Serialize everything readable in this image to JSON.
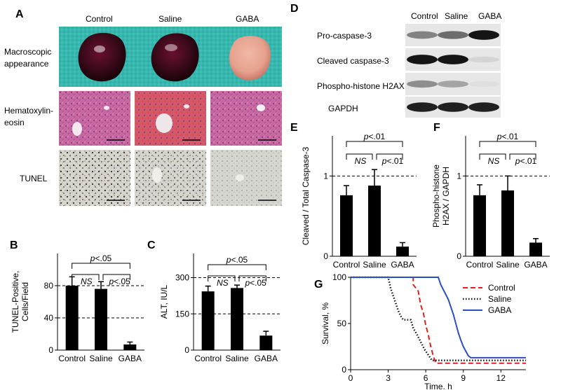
{
  "panel_letters": {
    "a": "A",
    "b": "B",
    "c": "C",
    "d": "D",
    "e": "E",
    "f": "F",
    "g": "G"
  },
  "panel_a": {
    "columns": [
      "Control",
      "Saline",
      "GABA"
    ],
    "rows": [
      "Macroscopic appearance",
      "Hematoxylin-eosin",
      "TUNEL"
    ],
    "row_lines": [
      [
        "Macroscopic",
        "appearance"
      ],
      [
        "Hematoxylin-",
        "eosin"
      ],
      [
        "TUNEL"
      ]
    ],
    "colors": {
      "teal": "#37b7ae",
      "dark_liver": "#3a0a1a",
      "pale_liver": "#e6a08e",
      "he_bg": "#c7679f",
      "tunel_bg": "#d6d6d0"
    }
  },
  "panel_d": {
    "columns": [
      "Control",
      "Saline",
      "GABA"
    ],
    "bands": [
      "Pro-caspase-3",
      "Cleaved caspase-3",
      "Phospho-histone H2AX",
      "GAPDH"
    ],
    "intensity": [
      [
        0.45,
        0.55,
        0.95
      ],
      [
        0.95,
        0.95,
        0.08
      ],
      [
        0.4,
        0.3,
        0.03
      ],
      [
        0.9,
        0.9,
        0.9
      ]
    ]
  },
  "chart_data": [
    {
      "id": "B",
      "type": "bar",
      "categories": [
        "Control",
        "Saline",
        "GABA"
      ],
      "values": [
        80,
        76,
        7
      ],
      "errors": [
        11,
        9,
        3
      ],
      "ylabel_lines": [
        "TUNEL-Positive,",
        "Cells/Field"
      ],
      "ylim": [
        0,
        120
      ],
      "yticks": [
        0,
        40,
        80
      ],
      "dashed_lines": [
        40,
        80
      ],
      "annotations": [
        {
          "p_prefix": "p",
          "text": "<.05"
        },
        {
          "text": "NS"
        },
        {
          "p_prefix": "p",
          "text": "<.05"
        }
      ]
    },
    {
      "id": "C",
      "type": "bar",
      "categories": [
        "Control",
        "Saline",
        "GABA"
      ],
      "values": [
        243,
        257,
        60
      ],
      "errors": [
        22,
        12,
        18
      ],
      "ylabel": "ALT, IU/L",
      "ylim": [
        0,
        400
      ],
      "yticks": [
        0,
        150,
        300
      ],
      "dashed_lines": [
        150,
        300
      ],
      "annotations": [
        {
          "p_prefix": "p",
          "text": "<.05"
        },
        {
          "text": "NS"
        },
        {
          "p_prefix": "p",
          "text": "<.05"
        }
      ]
    },
    {
      "id": "E",
      "type": "bar",
      "categories": [
        "Control",
        "Saline",
        "GABA"
      ],
      "values": [
        0.76,
        0.88,
        0.12
      ],
      "errors": [
        0.12,
        0.2,
        0.05
      ],
      "ylabel": "Cleaved / Total Caspase-3",
      "ylim": [
        0,
        1.5
      ],
      "yticks": [
        0,
        1
      ],
      "dashed_lines": [
        1
      ],
      "annotations": [
        {
          "p_prefix": "p",
          "text": "<.01"
        },
        {
          "text": "NS"
        },
        {
          "p_prefix": "p",
          "text": "<.01"
        }
      ]
    },
    {
      "id": "F",
      "type": "bar",
      "categories": [
        "Control",
        "Saline",
        "GABA"
      ],
      "values": [
        0.76,
        0.82,
        0.17
      ],
      "errors": [
        0.13,
        0.18,
        0.05
      ],
      "ylabel_lines": [
        "Phospho-histone",
        "H2AX / GAPDH"
      ],
      "ylim": [
        0,
        1.5
      ],
      "yticks": [
        0,
        1
      ],
      "dashed_lines": [
        1
      ],
      "annotations": [
        {
          "p_prefix": "p",
          "text": "<.01"
        },
        {
          "text": "NS"
        },
        {
          "p_prefix": "p",
          "text": "<.01"
        }
      ]
    },
    {
      "id": "G",
      "type": "line",
      "xlabel": "Time, h",
      "ylabel": "Survival, %",
      "xlim": [
        0,
        14
      ],
      "ylim": [
        0,
        100
      ],
      "xticks": [
        0,
        3,
        6,
        9,
        12
      ],
      "yticks": [
        0,
        50,
        100
      ],
      "legend_position": "top-right",
      "series": [
        {
          "name": "Control",
          "color": "#e0201c",
          "dash": "red-dash",
          "points": [
            [
              0,
              100
            ],
            [
              5,
              100
            ],
            [
              5,
              92
            ],
            [
              5.4,
              85
            ],
            [
              5.6,
              70
            ],
            [
              5.8,
              62
            ],
            [
              6,
              48
            ],
            [
              6.2,
              38
            ],
            [
              6.4,
              25
            ],
            [
              6.6,
              15
            ],
            [
              6.8,
              7
            ],
            [
              14,
              7
            ]
          ]
        },
        {
          "name": "Saline",
          "color": "#111111",
          "dash": "dots",
          "points": [
            [
              0,
              100
            ],
            [
              3,
              100
            ],
            [
              3.2,
              88
            ],
            [
              3.4,
              80
            ],
            [
              3.6,
              72
            ],
            [
              3.8,
              64
            ],
            [
              4,
              58
            ],
            [
              4.2,
              54
            ],
            [
              4.8,
              54
            ],
            [
              5,
              45
            ],
            [
              5.3,
              38
            ],
            [
              5.6,
              30
            ],
            [
              5.9,
              22
            ],
            [
              6.2,
              16
            ],
            [
              6.5,
              10
            ],
            [
              14,
              10
            ]
          ]
        },
        {
          "name": "GABA",
          "color": "#2b4fbf",
          "dash": "solid",
          "points": [
            [
              0,
              100
            ],
            [
              7,
              100
            ],
            [
              7.2,
              92
            ],
            [
              7.5,
              84
            ],
            [
              7.8,
              76
            ],
            [
              8,
              68
            ],
            [
              8.2,
              60
            ],
            [
              8.4,
              50
            ],
            [
              8.6,
              40
            ],
            [
              8.8,
              32
            ],
            [
              9,
              25
            ],
            [
              9.2,
              20
            ],
            [
              9.4,
              15
            ],
            [
              9.6,
              13
            ],
            [
              14,
              13
            ]
          ]
        }
      ]
    }
  ]
}
